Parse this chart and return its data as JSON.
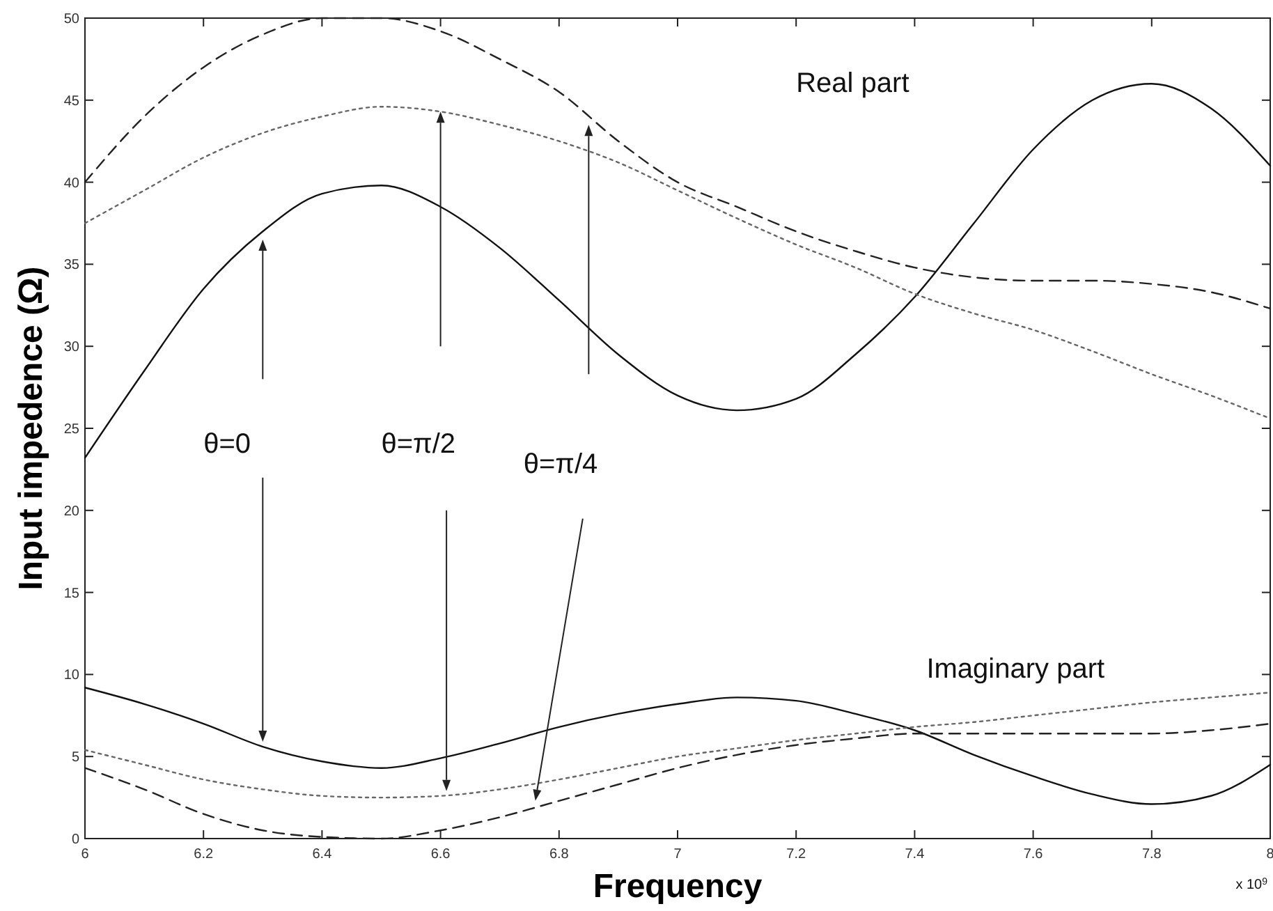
{
  "chart_data": {
    "type": "line",
    "xlabel": "Frequency",
    "ylabel": "Input impedence (Ω)",
    "xlim": [
      6,
      8
    ],
    "xticks": [
      6,
      6.2,
      6.4,
      6.6,
      6.8,
      7,
      7.2,
      7.4,
      7.6,
      7.8,
      8
    ],
    "ylim": [
      0,
      50
    ],
    "yticks": [
      0,
      5,
      10,
      15,
      20,
      25,
      30,
      35,
      40,
      45,
      50
    ],
    "grid": false,
    "marker": "none",
    "x": [
      6,
      6.1,
      6.2,
      6.3,
      6.4,
      6.5,
      6.6,
      6.7,
      6.8,
      6.9,
      7,
      7.1,
      7.2,
      7.3,
      7.4,
      7.5,
      7.6,
      7.7,
      7.8,
      7.9,
      8
    ],
    "series": [
      {
        "color": "#111111",
        "line_style": "solid",
        "values": [
          23.2,
          28.5,
          33.5,
          37,
          39.3,
          39.8,
          38.5,
          36,
          32.8,
          29.5,
          27,
          26.1,
          26.8,
          29.5,
          33,
          37.5,
          42,
          45,
          46,
          44.5,
          41
        ]
      },
      {
        "color": "#222222",
        "line_style": "dashed",
        "values": [
          40,
          44,
          47,
          49,
          50,
          50,
          49.2,
          47.5,
          45.5,
          42.5,
          40,
          38.5,
          37,
          35.8,
          34.8,
          34.2,
          34,
          34,
          33.8,
          33.3,
          32.3
        ]
      },
      {
        "color": "#666666",
        "line_style": "dotted",
        "values": [
          37.5,
          39.5,
          41.5,
          43,
          44,
          44.6,
          44.3,
          43.5,
          42.5,
          41.2,
          39.5,
          37.8,
          36.2,
          34.8,
          33.2,
          32,
          31,
          29.7,
          28.3,
          27,
          25.6
        ]
      },
      {
        "color": "#111111",
        "line_style": "solid",
        "values": [
          9.2,
          8.2,
          7,
          5.6,
          4.7,
          4.3,
          4.9,
          5.8,
          6.8,
          7.6,
          8.2,
          8.6,
          8.4,
          7.6,
          6.6,
          5.1,
          3.8,
          2.7,
          2.1,
          2.6,
          4.5
        ]
      },
      {
        "color": "#666666",
        "line_style": "dotted",
        "values": [
          5.4,
          4.5,
          3.6,
          3,
          2.6,
          2.5,
          2.6,
          3,
          3.6,
          4.3,
          5,
          5.5,
          6,
          6.4,
          6.8,
          7.1,
          7.5,
          7.9,
          8.3,
          8.6,
          8.9
        ]
      },
      {
        "color": "#222222",
        "line_style": "dashed",
        "values": [
          4.3,
          3,
          1.5,
          0.5,
          0.1,
          0,
          0.5,
          1.3,
          2.3,
          3.3,
          4.3,
          5.1,
          5.7,
          6.1,
          6.4,
          6.4,
          6.4,
          6.4,
          6.4,
          6.6,
          7
        ]
      }
    ],
    "annotations": [
      "Real part",
      "Imaginary part",
      "θ=0",
      "θ=π/2",
      "θ=π/4",
      "x 10$^{9}$"
    ]
  }
}
